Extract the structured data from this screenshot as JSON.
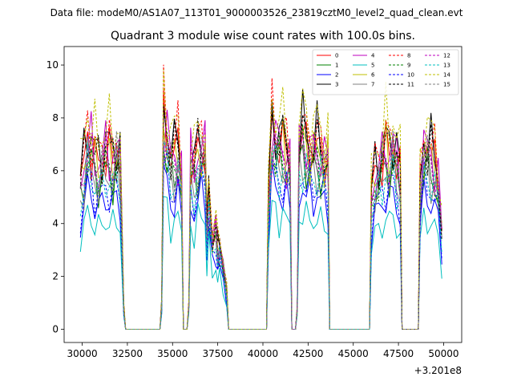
{
  "figure": {
    "suptitle": "Data file: modeM0/AS1A07_113T01_9000003526_23819cztM0_level2_quad_clean.evt"
  },
  "chart_data": {
    "type": "line",
    "title": "Quadrant 3 module wise count rates with 100.0s bins.",
    "xlabel": "",
    "ylabel": "",
    "x_offset_label": "+3.201e8",
    "xlim": [
      29000,
      51000
    ],
    "ylim": [
      -0.5,
      10.7
    ],
    "x_ticks": [
      30000,
      32500,
      35000,
      37500,
      40000,
      42500,
      45000,
      47500,
      50000
    ],
    "x_tick_labels": [
      "30000",
      "32500",
      "35000",
      "37500",
      "40000",
      "42500",
      "45000",
      "47500",
      "50000"
    ],
    "y_ticks": [
      0,
      2,
      4,
      6,
      8,
      10
    ],
    "y_tick_labels": [
      "0",
      "2",
      "4",
      "6",
      "8",
      "10"
    ],
    "legend_position": "top-right",
    "grid": false,
    "profile": {
      "x": [
        29900,
        30100,
        30300,
        30500,
        30700,
        30900,
        31100,
        31300,
        31500,
        31700,
        31900,
        32100,
        32300,
        32400,
        34300,
        34400,
        34500,
        34700,
        34900,
        35100,
        35300,
        35500,
        35600,
        35800,
        35900,
        36000,
        36200,
        36400,
        36600,
        36800,
        36900,
        37000,
        37200,
        37400,
        37500,
        37600,
        37800,
        38000,
        38100,
        38300,
        40200,
        40300,
        40500,
        40700,
        40900,
        41100,
        41300,
        41500,
        41600,
        41800,
        41900,
        42000,
        42200,
        42400,
        42600,
        42800,
        43000,
        43200,
        43400,
        43600,
        43700,
        43900,
        45900,
        46000,
        46200,
        46400,
        46600,
        46800,
        47000,
        47200,
        47400,
        47600,
        47700,
        47800,
        48600,
        48700,
        48900,
        49100,
        49300,
        49500,
        49700,
        49900
      ],
      "y": [
        0.68,
        0.78,
        0.9,
        0.86,
        0.8,
        0.78,
        0.8,
        0.84,
        0.82,
        0.8,
        0.84,
        0.8,
        0.1,
        0,
        0,
        0.12,
        0.98,
        0.92,
        0.8,
        0.82,
        0.86,
        0.72,
        0,
        0,
        0.12,
        0.8,
        0.74,
        0.84,
        0.86,
        0.84,
        0.46,
        0.64,
        0.42,
        0.48,
        0.38,
        0.4,
        0.3,
        0.18,
        0,
        0,
        0,
        0.6,
        0.95,
        0.9,
        0.86,
        0.88,
        0.83,
        0.8,
        0,
        0,
        0.1,
        0.86,
        0.92,
        0.86,
        0.84,
        0.84,
        0.86,
        0.82,
        0.8,
        0.8,
        0,
        0,
        0,
        0.62,
        0.74,
        0.76,
        0.8,
        0.86,
        0.82,
        0.88,
        0.8,
        0.72,
        0,
        0,
        0,
        0.66,
        0.86,
        0.84,
        0.82,
        0.78,
        0.7,
        0.46
      ]
    },
    "series": [
      {
        "name": "0",
        "color": "#ff0000",
        "dash": "solid",
        "level": 8.0
      },
      {
        "name": "1",
        "color": "#008000",
        "dash": "solid",
        "level": 7.1
      },
      {
        "name": "2",
        "color": "#0000ff",
        "dash": "solid",
        "level": 5.9
      },
      {
        "name": "3",
        "color": "#000000",
        "dash": "solid",
        "level": 8.5
      },
      {
        "name": "4",
        "color": "#bf00bf",
        "dash": "solid",
        "level": 8.1
      },
      {
        "name": "5",
        "color": "#00bfbf",
        "dash": "solid",
        "level": 4.9
      },
      {
        "name": "6",
        "color": "#bfbf00",
        "dash": "solid",
        "level": 7.9
      },
      {
        "name": "7",
        "color": "#808080",
        "dash": "solid",
        "level": 7.0
      },
      {
        "name": "8",
        "color": "#ff0000",
        "dash": "dashed",
        "level": 8.6
      },
      {
        "name": "9",
        "color": "#008000",
        "dash": "dashed",
        "level": 7.3
      },
      {
        "name": "10",
        "color": "#0000ff",
        "dash": "dashed",
        "level": 6.4
      },
      {
        "name": "11",
        "color": "#000000",
        "dash": "dashed",
        "level": 8.2
      },
      {
        "name": "12",
        "color": "#bf00bf",
        "dash": "dashed",
        "level": 7.6
      },
      {
        "name": "13",
        "color": "#00bfbf",
        "dash": "dashed",
        "level": 6.8
      },
      {
        "name": "14",
        "color": "#bfbf00",
        "dash": "dashed",
        "level": 9.2
      },
      {
        "name": "15",
        "color": "#808080",
        "dash": "dashed",
        "level": 7.6
      }
    ]
  }
}
